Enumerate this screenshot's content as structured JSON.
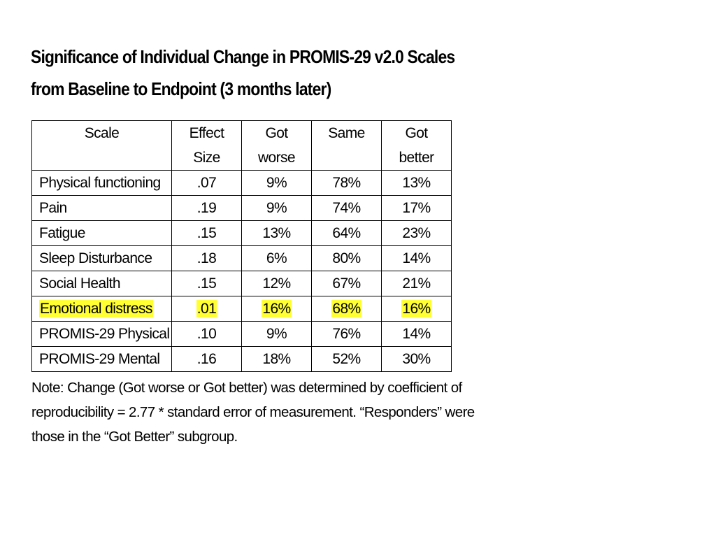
{
  "title": {
    "line1": "Significance of Individual Change in PROMIS-29 v2.0 Scales",
    "line2": "from Baseline to Endpoint (3 months later)"
  },
  "table": {
    "headers": {
      "scale": "Scale",
      "effect_line1": "Effect",
      "effect_line2": "Size",
      "worse_line1": "Got",
      "worse_line2": "worse",
      "same": "Same",
      "better_line1": "Got",
      "better_line2": "better"
    },
    "rows": [
      {
        "scale": "Physical functioning",
        "effect": ".07",
        "worse": "9%",
        "same": "78%",
        "better": "13%",
        "highlighted": false
      },
      {
        "scale": "Pain",
        "effect": ".19",
        "worse": "9%",
        "same": "74%",
        "better": "17%",
        "highlighted": false
      },
      {
        "scale": "Fatigue",
        "effect": ".15",
        "worse": "13%",
        "same": "64%",
        "better": "23%",
        "highlighted": false
      },
      {
        "scale": "Sleep Disturbance",
        "effect": ".18",
        "worse": "6%",
        "same": "80%",
        "better": "14%",
        "highlighted": false
      },
      {
        "scale": "Social Health",
        "effect": ".15",
        "worse": "12%",
        "same": "67%",
        "better": "21%",
        "highlighted": false
      },
      {
        "scale": "Emotional distress",
        "effect": ".01",
        "worse": "16%",
        "same": "68%",
        "better": "16%",
        "highlighted": true
      },
      {
        "scale": "PROMIS-29 Physical",
        "effect": ".10",
        "worse": "9%",
        "same": "76%",
        "better": "14%",
        "highlighted": false
      },
      {
        "scale": "PROMIS-29 Mental",
        "effect": ".16",
        "worse": "18%",
        "same": "52%",
        "better": "30%",
        "highlighted": false
      }
    ]
  },
  "note": {
    "line1": "Note: Change (Got worse or Got better) was determined by coefficient of",
    "line2": "reproducibility = 2.77 * standard error of measurement.  “Responders” were",
    "line3": "those in the “Got Better” subgroup."
  },
  "colors": {
    "highlight": "#ffff33",
    "border": "#000000",
    "text": "#000000",
    "background": "#ffffff"
  }
}
